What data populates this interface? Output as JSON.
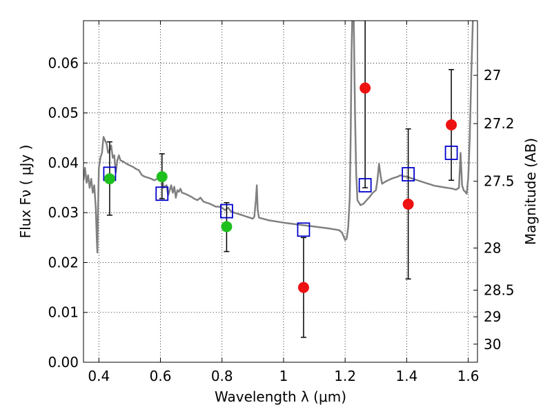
{
  "chart_data": {
    "type": "scatter",
    "xlabel": "Wavelength  λ (μm)",
    "ylabel": "Flux  Fν  ( μJy )",
    "ylabel_right": "Magnitude (AB)",
    "xlim": [
      0.35,
      1.63
    ],
    "ylim": [
      0.0,
      0.0685
    ],
    "grid": true,
    "x_ticks": [
      {
        "value": 0.4,
        "label": "0.4"
      },
      {
        "value": 0.6,
        "label": "0.6"
      },
      {
        "value": 0.8,
        "label": "0.8"
      },
      {
        "value": 1.0,
        "label": "1"
      },
      {
        "value": 1.2,
        "label": "1.2"
      },
      {
        "value": 1.4,
        "label": "1.4"
      },
      {
        "value": 1.6,
        "label": "1.6"
      }
    ],
    "y_ticks": [
      {
        "value": 0.0,
        "label": "0.00"
      },
      {
        "value": 0.01,
        "label": "0.01"
      },
      {
        "value": 0.02,
        "label": "0.02"
      },
      {
        "value": 0.03,
        "label": "0.03"
      },
      {
        "value": 0.04,
        "label": "0.04"
      },
      {
        "value": 0.05,
        "label": "0.05"
      },
      {
        "value": 0.06,
        "label": "0.06"
      }
    ],
    "right_ticks": [
      {
        "value": 27.0,
        "label": "27"
      },
      {
        "value": 27.2,
        "label": "27.2"
      },
      {
        "value": 27.5,
        "label": "27.5"
      },
      {
        "value": 28.0,
        "label": "28"
      },
      {
        "value": 28.5,
        "label": "28.5"
      },
      {
        "value": 29.0,
        "label": "29"
      },
      {
        "value": 30.0,
        "label": "30"
      }
    ],
    "series": [
      {
        "role": "model-spectrum",
        "kind": "line",
        "color": "#808080",
        "points": [
          [
            0.35,
            0.0365
          ],
          [
            0.355,
            0.039
          ],
          [
            0.36,
            0.036
          ],
          [
            0.365,
            0.0375
          ],
          [
            0.37,
            0.035
          ],
          [
            0.375,
            0.0368
          ],
          [
            0.38,
            0.034
          ],
          [
            0.385,
            0.0355
          ],
          [
            0.39,
            0.031
          ],
          [
            0.393,
            0.025
          ],
          [
            0.395,
            0.022
          ],
          [
            0.397,
            0.03
          ],
          [
            0.4,
            0.039
          ],
          [
            0.405,
            0.041
          ],
          [
            0.41,
            0.042
          ],
          [
            0.415,
            0.0452
          ],
          [
            0.42,
            0.0445
          ],
          [
            0.425,
            0.0438
          ],
          [
            0.43,
            0.042
          ],
          [
            0.435,
            0.0425
          ],
          [
            0.44,
            0.0435
          ],
          [
            0.445,
            0.041
          ],
          [
            0.45,
            0.0415
          ],
          [
            0.455,
            0.038
          ],
          [
            0.46,
            0.0405
          ],
          [
            0.465,
            0.0415
          ],
          [
            0.47,
            0.0405
          ],
          [
            0.48,
            0.0402
          ],
          [
            0.49,
            0.0398
          ],
          [
            0.5,
            0.0395
          ],
          [
            0.51,
            0.0392
          ],
          [
            0.52,
            0.0388
          ],
          [
            0.53,
            0.0385
          ],
          [
            0.54,
            0.0375
          ],
          [
            0.55,
            0.0372
          ],
          [
            0.56,
            0.037
          ],
          [
            0.57,
            0.0368
          ],
          [
            0.58,
            0.0365
          ],
          [
            0.59,
            0.0368
          ],
          [
            0.6,
            0.0365
          ],
          [
            0.605,
            0.0378
          ],
          [
            0.61,
            0.035
          ],
          [
            0.62,
            0.0355
          ],
          [
            0.625,
            0.0335
          ],
          [
            0.63,
            0.0345
          ],
          [
            0.635,
            0.0355
          ],
          [
            0.64,
            0.034
          ],
          [
            0.645,
            0.0352
          ],
          [
            0.65,
            0.033
          ],
          [
            0.655,
            0.0345
          ],
          [
            0.66,
            0.0342
          ],
          [
            0.665,
            0.0348
          ],
          [
            0.67,
            0.034
          ],
          [
            0.68,
            0.0338
          ],
          [
            0.69,
            0.0335
          ],
          [
            0.7,
            0.0332
          ],
          [
            0.71,
            0.0328
          ],
          [
            0.72,
            0.0325
          ],
          [
            0.73,
            0.033
          ],
          [
            0.74,
            0.0322
          ],
          [
            0.75,
            0.032
          ],
          [
            0.76,
            0.0318
          ],
          [
            0.77,
            0.0315
          ],
          [
            0.78,
            0.0312
          ],
          [
            0.79,
            0.0312
          ],
          [
            0.8,
            0.031
          ],
          [
            0.81,
            0.0305
          ],
          [
            0.82,
            0.031
          ],
          [
            0.83,
            0.0302
          ],
          [
            0.84,
            0.03
          ],
          [
            0.85,
            0.0298
          ],
          [
            0.86,
            0.0296
          ],
          [
            0.87,
            0.0294
          ],
          [
            0.88,
            0.0292
          ],
          [
            0.89,
            0.029
          ],
          [
            0.9,
            0.0288
          ],
          [
            0.905,
            0.0292
          ],
          [
            0.91,
            0.0325
          ],
          [
            0.913,
            0.0355
          ],
          [
            0.916,
            0.0305
          ],
          [
            0.92,
            0.029
          ],
          [
            0.95,
            0.0285
          ],
          [
            1.0,
            0.028
          ],
          [
            1.05,
            0.0276
          ],
          [
            1.1,
            0.0272
          ],
          [
            1.15,
            0.0268
          ],
          [
            1.18,
            0.0265
          ],
          [
            1.19,
            0.026
          ],
          [
            1.2,
            0.0245
          ],
          [
            1.205,
            0.0248
          ],
          [
            1.21,
            0.027
          ],
          [
            1.215,
            0.033
          ],
          [
            1.218,
            0.045
          ],
          [
            1.221,
            0.062
          ],
          [
            1.223,
            0.0685
          ],
          [
            1.228,
            0.0685
          ],
          [
            1.232,
            0.05
          ],
          [
            1.236,
            0.038
          ],
          [
            1.24,
            0.0325
          ],
          [
            1.25,
            0.0315
          ],
          [
            1.26,
            0.0318
          ],
          [
            1.27,
            0.0325
          ],
          [
            1.28,
            0.0332
          ],
          [
            1.29,
            0.034
          ],
          [
            1.3,
            0.0345
          ],
          [
            1.305,
            0.0365
          ],
          [
            1.31,
            0.0398
          ],
          [
            1.315,
            0.0375
          ],
          [
            1.32,
            0.0358
          ],
          [
            1.33,
            0.0362
          ],
          [
            1.34,
            0.0365
          ],
          [
            1.35,
            0.0368
          ],
          [
            1.36,
            0.037
          ],
          [
            1.37,
            0.0372
          ],
          [
            1.38,
            0.0375
          ],
          [
            1.39,
            0.0373
          ],
          [
            1.4,
            0.0372
          ],
          [
            1.41,
            0.037
          ],
          [
            1.42,
            0.0368
          ],
          [
            1.43,
            0.0366
          ],
          [
            1.44,
            0.0364
          ],
          [
            1.45,
            0.0362
          ],
          [
            1.46,
            0.036
          ],
          [
            1.47,
            0.0358
          ],
          [
            1.48,
            0.0356
          ],
          [
            1.49,
            0.0354
          ],
          [
            1.5,
            0.0353
          ],
          [
            1.51,
            0.0352
          ],
          [
            1.52,
            0.0351
          ],
          [
            1.53,
            0.035
          ],
          [
            1.54,
            0.0349
          ],
          [
            1.55,
            0.0348
          ],
          [
            1.56,
            0.0346
          ],
          [
            1.57,
            0.035
          ],
          [
            1.575,
            0.042
          ],
          [
            1.58,
            0.0355
          ],
          [
            1.585,
            0.0345
          ],
          [
            1.59,
            0.0342
          ],
          [
            1.595,
            0.0338
          ],
          [
            1.6,
            0.037
          ],
          [
            1.605,
            0.045
          ],
          [
            1.61,
            0.058
          ],
          [
            1.615,
            0.0685
          ]
        ]
      },
      {
        "role": "model-photometry",
        "kind": "open-square",
        "color": "#0000cc",
        "points": [
          [
            0.435,
            0.0378
          ],
          [
            0.605,
            0.0338
          ],
          [
            0.815,
            0.0303
          ],
          [
            1.065,
            0.0266
          ],
          [
            1.265,
            0.0355
          ],
          [
            1.405,
            0.0377
          ],
          [
            1.545,
            0.042
          ]
        ]
      },
      {
        "role": "detections",
        "kind": "filled-circle",
        "color": "#1ec01e",
        "points": [
          {
            "x": 0.435,
            "y": 0.0368,
            "err_low": 0.0295,
            "err_high": 0.0442
          },
          {
            "x": 0.605,
            "y": 0.0372,
            "err_low": 0.0328,
            "err_high": 0.0418
          },
          {
            "x": 0.815,
            "y": 0.0272,
            "err_low": 0.0222,
            "err_high": 0.032
          }
        ]
      },
      {
        "role": "low-significance",
        "kind": "filled-circle",
        "color": "#ee1111",
        "points": [
          {
            "x": 1.065,
            "y": 0.015,
            "err_low": 0.005,
            "err_high": 0.025
          },
          {
            "x": 1.265,
            "y": 0.055,
            "err_low": 0.035,
            "err_high": 0.0685
          },
          {
            "x": 1.405,
            "y": 0.0317,
            "err_low": 0.0167,
            "err_high": 0.0468
          },
          {
            "x": 1.545,
            "y": 0.0476,
            "err_low": 0.0365,
            "err_high": 0.0587
          }
        ]
      }
    ]
  }
}
